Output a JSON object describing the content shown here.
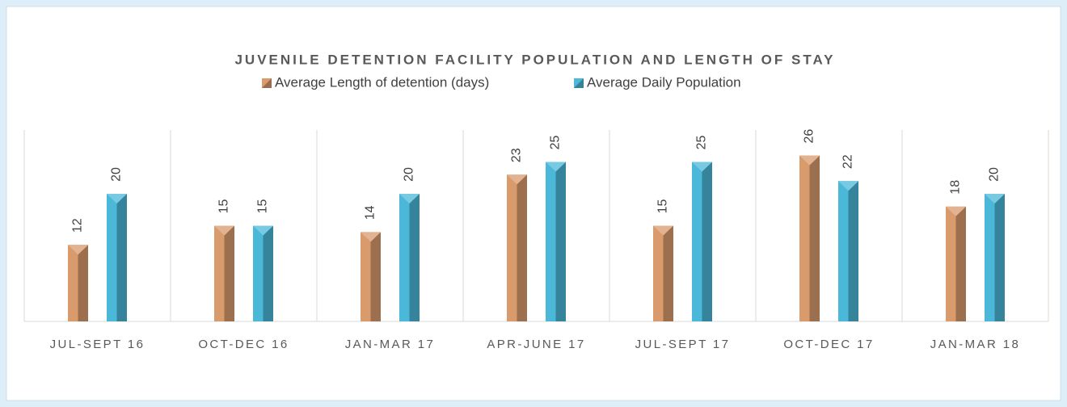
{
  "chart_data": {
    "type": "bar",
    "title": "JUVENILE DETENTION FACILITY POPULATION AND LENGTH OF STAY",
    "categories": [
      "JUL-SEPT 16",
      "OCT-DEC 16",
      "JAN-MAR 17",
      "APR-JUNE 17",
      "JUL-SEPT 17",
      "OCT-DEC 17",
      "JAN-MAR 18"
    ],
    "series": [
      {
        "name": "Average Length of detention (days)",
        "color": "#d99a6c",
        "values": [
          12,
          15,
          14,
          23,
          15,
          26,
          18
        ]
      },
      {
        "name": "Average Daily Population",
        "color": "#4bb8d9",
        "values": [
          20,
          15,
          20,
          25,
          25,
          22,
          20
        ]
      }
    ],
    "ylim": [
      0,
      30
    ]
  }
}
